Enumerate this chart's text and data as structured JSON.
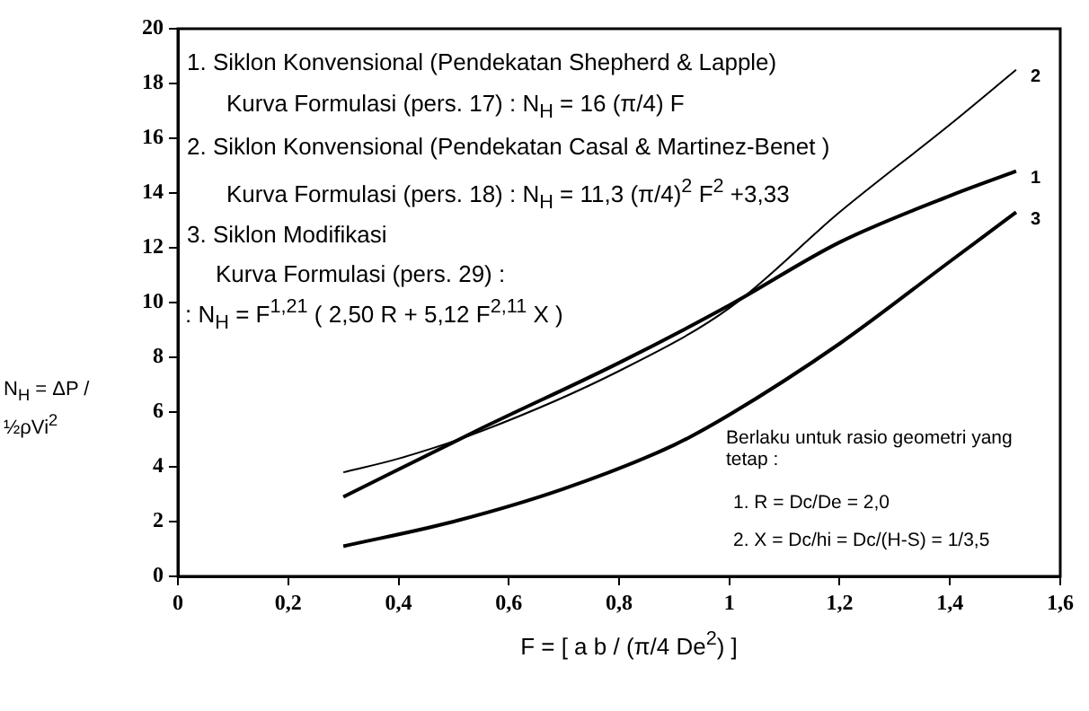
{
  "chart_data": {
    "type": "line",
    "xlabel": "F = [ a b / (π/4 De$^{2}$) ]",
    "ylabel": "N$_{H}$ = ΔP / ½ρVi$^{2}$",
    "xlim": [
      0,
      1.6
    ],
    "ylim": [
      0,
      20
    ],
    "xticks": [
      0,
      {
        "value": 0.2,
        "label": "0,2"
      },
      {
        "value": 0.4,
        "label": "0,4"
      },
      {
        "value": 0.6,
        "label": "0,6"
      },
      {
        "value": 0.8,
        "label": "0,8"
      },
      1,
      {
        "value": 1.2,
        "label": "1,2"
      },
      {
        "value": 1.4,
        "label": "1,4"
      },
      {
        "value": 1.6,
        "label": "1,6"
      }
    ],
    "yticks": [
      0,
      2,
      4,
      6,
      8,
      10,
      12,
      14,
      16,
      18,
      20
    ],
    "grid": false,
    "legend": false,
    "marker": "none",
    "line_style": "solid",
    "series": [
      {
        "name": "1",
        "color": "#000000",
        "x": [
          0.3,
          0.55,
          0.8,
          1.0,
          1.2,
          1.4,
          1.52
        ],
        "values": [
          2.9,
          5.4,
          7.8,
          9.9,
          12.2,
          13.9,
          14.8
        ]
      },
      {
        "name": "2",
        "color": "#000000",
        "x": [
          0.3,
          0.4,
          0.55,
          0.8,
          1.0,
          1.2,
          1.4,
          1.52
        ],
        "values": [
          3.8,
          4.3,
          5.3,
          7.5,
          9.8,
          13.3,
          16.5,
          18.5
        ]
      },
      {
        "name": "3",
        "color": "#000000",
        "x": [
          0.3,
          0.5,
          0.7,
          0.9,
          1.0,
          1.2,
          1.4,
          1.52
        ],
        "values": [
          1.1,
          2.0,
          3.2,
          4.8,
          5.9,
          8.5,
          11.5,
          13.3
        ]
      }
    ],
    "annotations": [
      "1. Siklon Konvensional  (Pendekatan Shepherd & Lapple)",
      "Kurva Formulasi (pers. 17) : N$_{H}$ = 16 (π/4) F",
      "2. Siklon Konvensional (Pendekatan Casal & Martinez-Benet )",
      "Kurva Formulasi (pers. 18) : N$_{H}$ = 11,3 (π/4)$^{2}$ F$^{2}$ +3,33",
      "3. Siklon Modifikasi",
      "Kurva Formulasi (pers. 29) :",
      ": N$_{H}$ = F$^{1,21}$ ( 2,50 R + 5,12 F$^{2,11}$ X )",
      "Berlaku untuk rasio geometri yang tetap :",
      "1. R = Dc/De = 2,0",
      "2. X = Dc/hi = Dc/(H-S) = 1/3,5"
    ]
  }
}
